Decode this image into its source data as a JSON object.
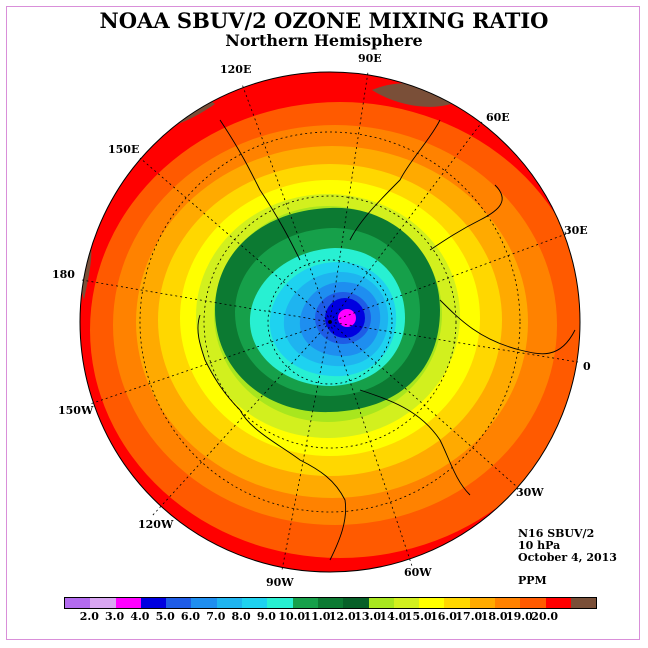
{
  "title": "NOAA SBUV/2 OZONE MIXING RATIO",
  "subtitle": "Northern Hemisphere",
  "longitude_labels": [
    "90E",
    "60E",
    "30E",
    "0",
    "30W",
    "60W",
    "90W",
    "120W",
    "150W",
    "180",
    "150E",
    "120E"
  ],
  "info": {
    "instrument": "N16 SBUV/2",
    "level": "10 hPa",
    "date": "October 4, 2013",
    "units": "PPM"
  },
  "colorbar": {
    "ticks": [
      "2.0",
      "3.0",
      "4.0",
      "5.0",
      "6.0",
      "7.0",
      "8.0",
      "9.0",
      "10.0",
      "11.0",
      "12.0",
      "13.0",
      "14.0",
      "15.0",
      "16.0",
      "17.0",
      "18.0",
      "19.0",
      "20.0"
    ],
    "colors": [
      "#b36bef",
      "#d9a6f2",
      "#ff00ff",
      "#0000e0",
      "#1e5ce6",
      "#1e8ef0",
      "#1eb4f0",
      "#1ed2f0",
      "#28f0d2",
      "#16a04a",
      "#0c7a32",
      "#076028",
      "#a8e61e",
      "#d2f01e",
      "#ffff00",
      "#ffd700",
      "#ffaa00",
      "#ff8200",
      "#ff5a00",
      "#ff0000",
      "#7a4f38"
    ]
  },
  "map_data": {
    "projection": "polar-stereographic north",
    "field": "ozone mixing ratio",
    "levels_ppm": [
      2,
      3,
      4,
      5,
      6,
      7,
      8,
      9,
      10,
      11,
      12,
      13,
      14,
      15,
      16,
      17,
      18,
      19,
      20
    ],
    "feature": "ozone minimum near north pole (~4-5 ppm), increasing toward equator (~19-20 ppm)"
  }
}
